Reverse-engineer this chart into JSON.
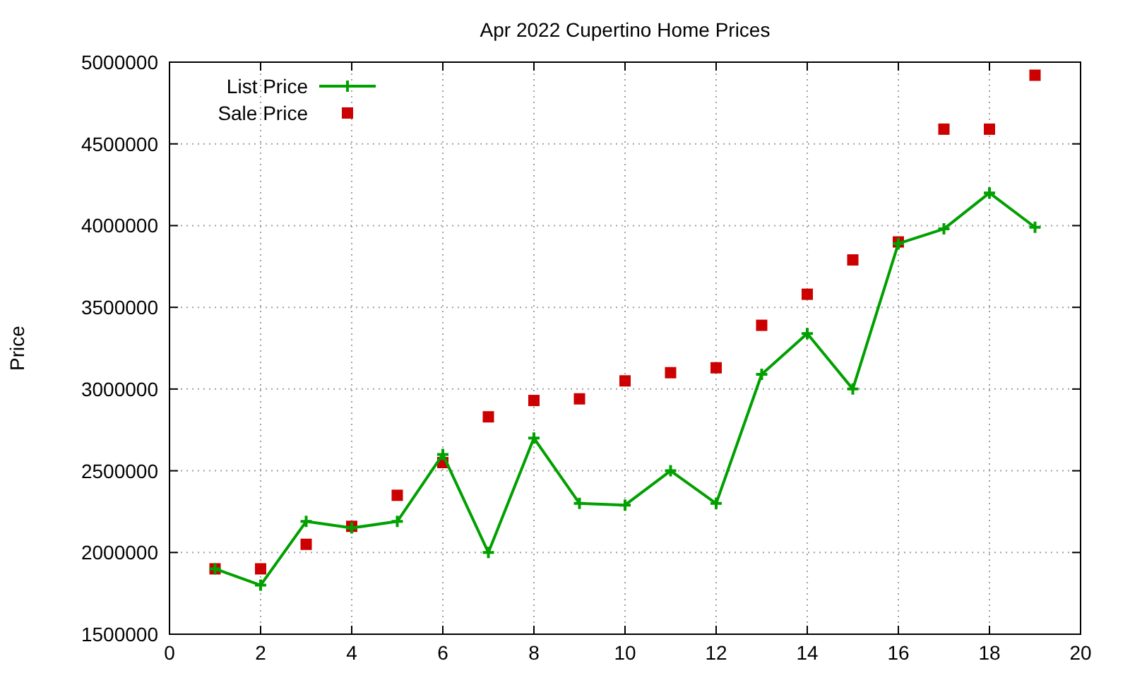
{
  "chart_data": {
    "type": "line",
    "title": "Apr 2022 Cupertino Home Prices",
    "ylabel": "Price",
    "x": [
      1,
      2,
      3,
      4,
      5,
      6,
      7,
      8,
      9,
      10,
      11,
      12,
      13,
      14,
      15,
      16,
      17,
      18,
      19
    ],
    "series": [
      {
        "name": "List Price",
        "color": "#00a000",
        "marker": "cross",
        "values": [
          1900000,
          1800000,
          2190000,
          2150000,
          2190000,
          2600000,
          2000000,
          2700000,
          2300000,
          2290000,
          2500000,
          2300000,
          3090000,
          3340000,
          3000000,
          3890000,
          3980000,
          4200000,
          3990000
        ]
      },
      {
        "name": "Sale Price",
        "type": "scatter",
        "color": "#cc0000",
        "marker": "square",
        "values": [
          1900000,
          1900000,
          2050000,
          2160000,
          2350000,
          2550000,
          2830000,
          2930000,
          2940000,
          3050000,
          3100000,
          3130000,
          3390000,
          3580000,
          3790000,
          3900000,
          4590000,
          4590000,
          4920000
        ]
      }
    ],
    "xlim": [
      0,
      20
    ],
    "xticks": [
      0,
      2,
      4,
      6,
      8,
      10,
      12,
      14,
      16,
      18,
      20
    ],
    "ylim": [
      1500000,
      5000000
    ],
    "yticks": [
      1500000,
      2000000,
      2500000,
      3000000,
      3500000,
      4000000,
      4500000,
      5000000
    ],
    "grid": true,
    "legend": "top left",
    "line_style": "solid"
  }
}
